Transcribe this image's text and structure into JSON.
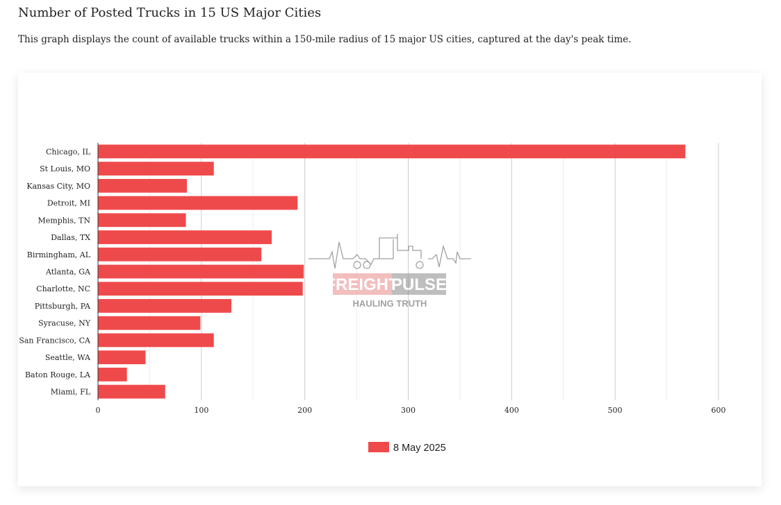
{
  "page": {
    "title": "Number of Posted Trucks in 15 US Major Cities",
    "description": "This graph displays the count of available trucks within a 150-mile radius of 15 major US cities, captured at the day's peak time."
  },
  "watermark": {
    "brand_left": "FREIGHT",
    "brand_right": "PULSE",
    "tagline": "HAULING TRUTH"
  },
  "chart_data": {
    "type": "bar",
    "orientation": "horizontal",
    "categories": [
      "Chicago, IL",
      "St Louis, MO",
      "Kansas City, MO",
      "Detroit, MI",
      "Memphis, TN",
      "Dallas, TX",
      "Birmingham, AL",
      "Atlanta, GA",
      "Charlotte, NC",
      "Pittsburgh, PA",
      "Syracuse, NY",
      "San Francisco, CA",
      "Seattle, WA",
      "Baton Rouge, LA",
      "Miami, FL"
    ],
    "series": [
      {
        "name": "8 May 2025",
        "color": "#ef4a4b",
        "values": [
          568,
          112,
          86,
          193,
          85,
          168,
          158,
          199,
          198,
          129,
          99,
          112,
          46,
          28,
          65
        ]
      }
    ],
    "xlim": [
      0,
      600
    ],
    "x_ticks": [
      0,
      100,
      200,
      300,
      400,
      500,
      600
    ],
    "grid": true,
    "legend_position": "bottom-center"
  }
}
